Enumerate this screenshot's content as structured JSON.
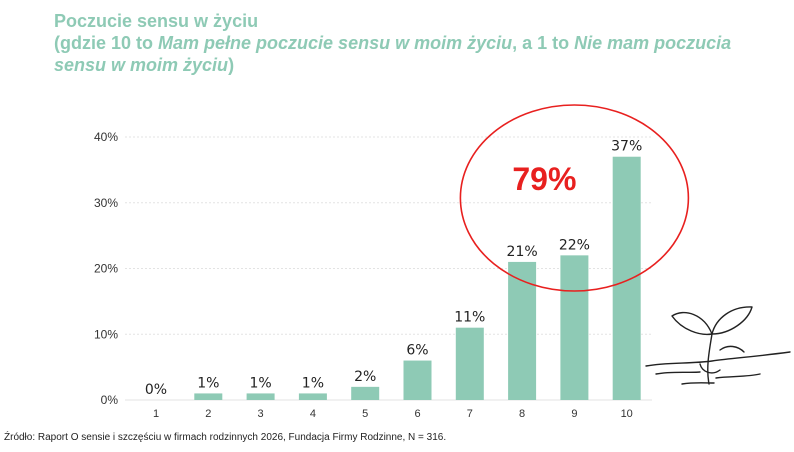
{
  "header": {
    "title": "Poczucie sensu w życiu",
    "subtitle_prefix": "(gdzie 10 to ",
    "subtitle_emph1": "Mam pełne poczucie sensu w moim życiu",
    "subtitle_mid": ", a 1 to ",
    "subtitle_emph2a": "Nie mam poczucia",
    "subtitle_emph2b": "sensu w moim życiu",
    "subtitle_suffix": ")"
  },
  "chart_data": {
    "type": "bar",
    "categories": [
      "1",
      "2",
      "3",
      "4",
      "5",
      "6",
      "7",
      "8",
      "9",
      "10"
    ],
    "values": [
      0,
      1,
      1,
      1,
      2,
      6,
      11,
      21,
      22,
      37
    ],
    "value_labels": [
      "0%",
      "1%",
      "1%",
      "1%",
      "2%",
      "6%",
      "11%",
      "21%",
      "22%",
      "37%"
    ],
    "yticks": [
      0,
      10,
      20,
      30,
      40
    ],
    "ytick_labels": [
      "0%",
      "10%",
      "20%",
      "30%",
      "40%"
    ],
    "ylim": [
      0,
      40
    ],
    "grid": true,
    "bar_color": "#8ecab5",
    "annotation": {
      "text": "79%",
      "categories": [
        "8",
        "9",
        "10"
      ],
      "color": "#e8201f"
    }
  },
  "source": "Źródło: Raport O sensie i szczęściu w firmach rodzinnych 2026, Fundacja Firmy Rodzinne, N = 316.",
  "decoration": {
    "icon": "sprout-icon"
  }
}
